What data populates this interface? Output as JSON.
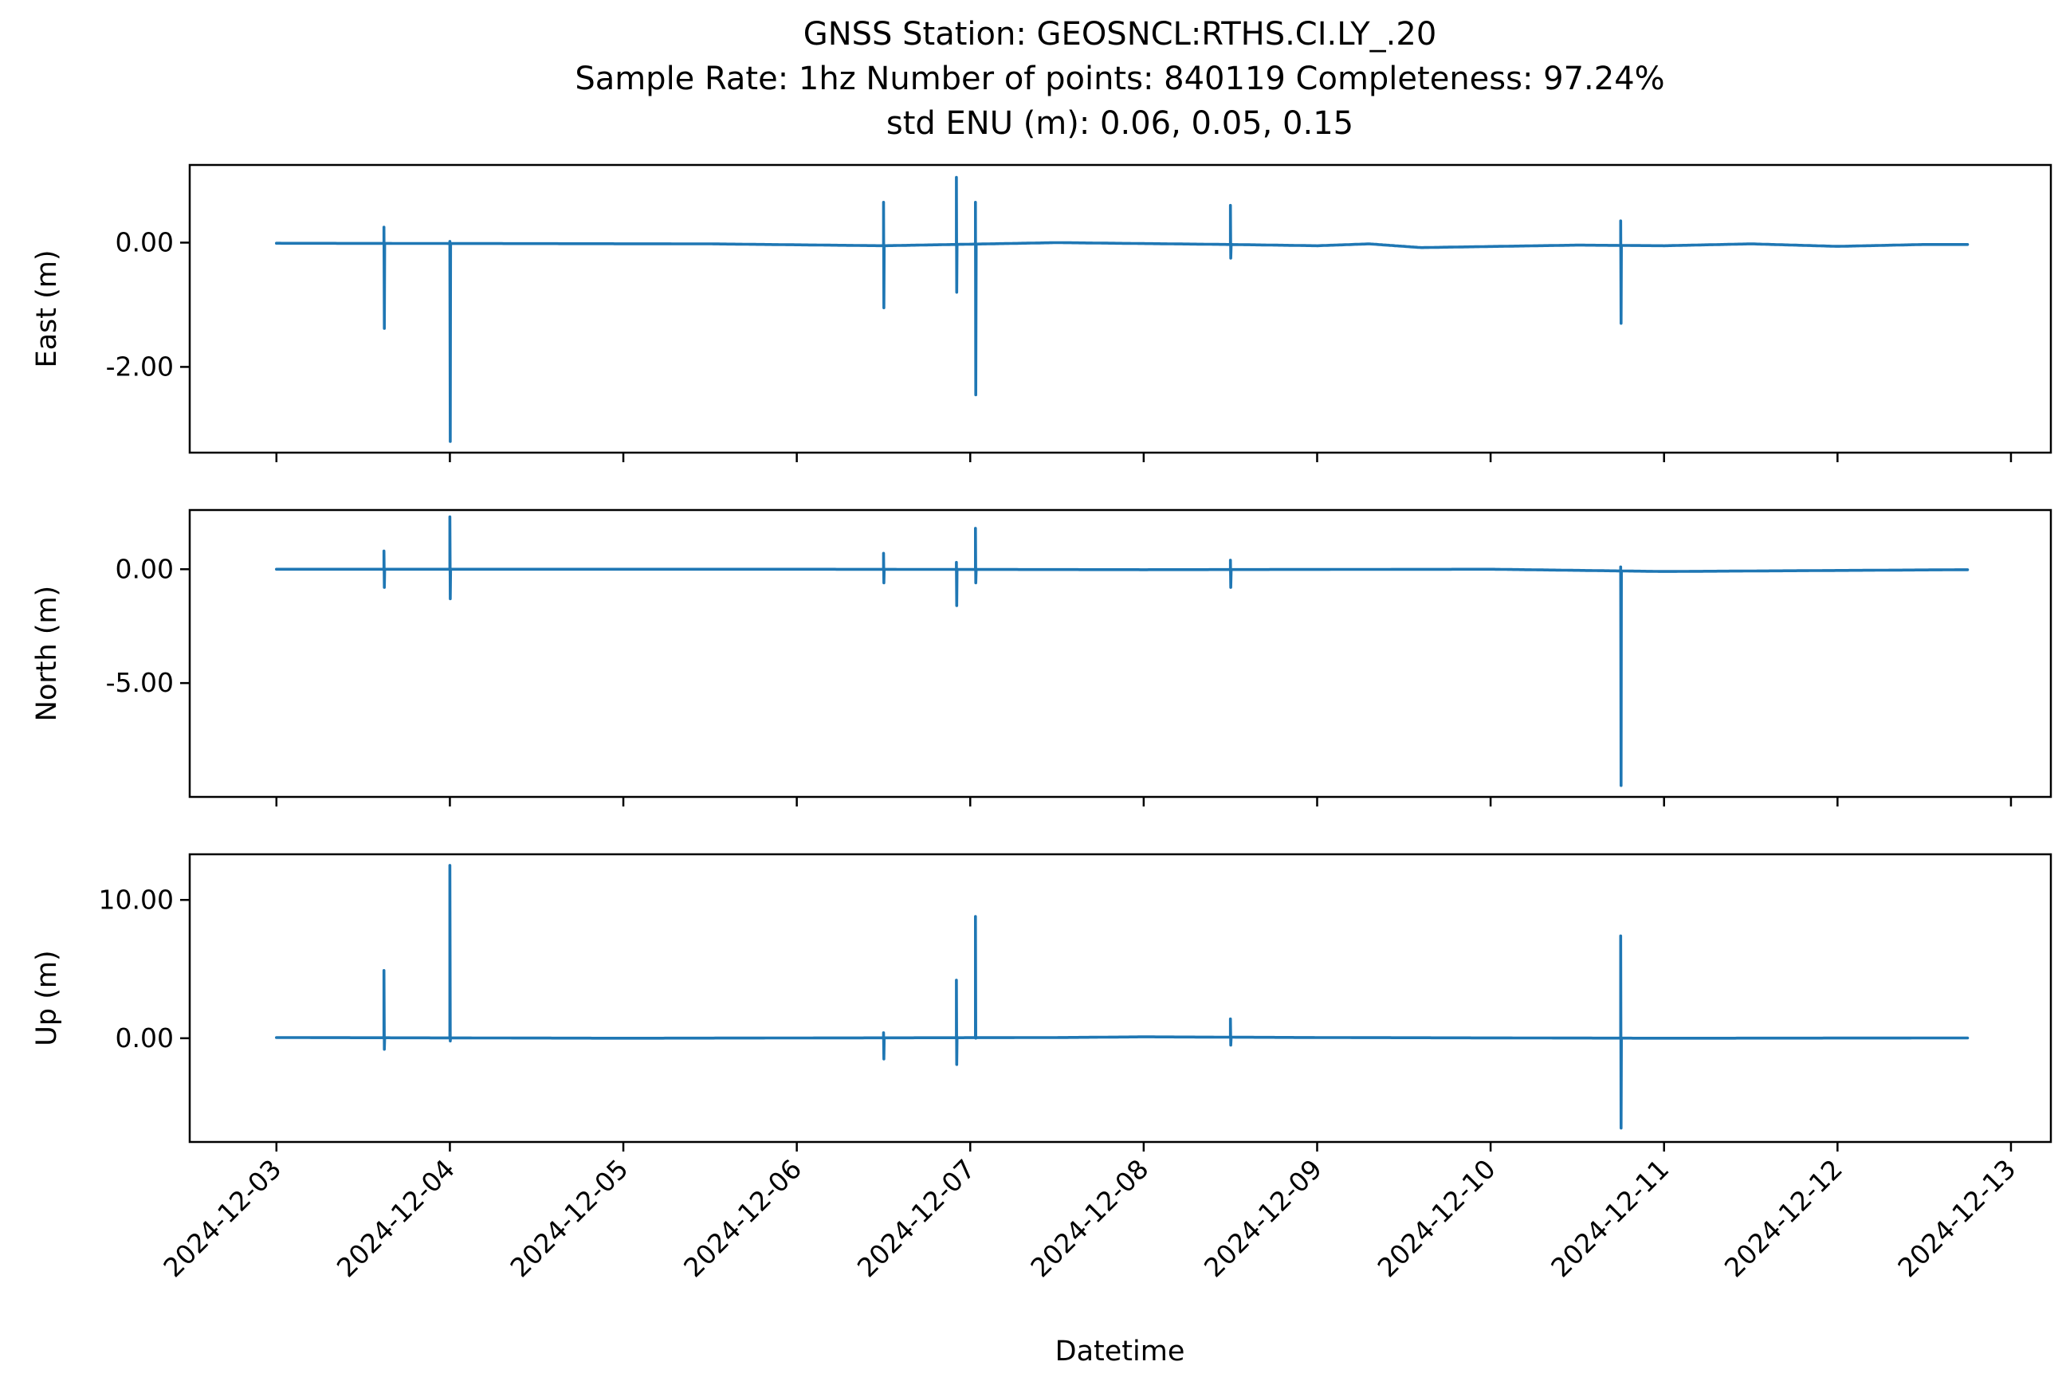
{
  "figure": {
    "title_lines": [
      "GNSS Station: GEOSNCL:RTHS.CI.LY_.20",
      "Sample Rate: 1hz   Number of points: 840119    Completeness:  97.24%",
      "std ENU (m):  0.06, 0.05, 0.15"
    ]
  },
  "colors": {
    "series": "#1f77b4",
    "axes": "#000000",
    "background": "#ffffff"
  },
  "chart_data": [
    {
      "type": "line",
      "ylabel": "East (m)",
      "xlabel": "",
      "yticks": [
        {
          "v": 0,
          "label": "0.00"
        },
        {
          "v": -2,
          "label": "-2.00"
        }
      ],
      "ylim": [
        -3.38,
        1.25
      ],
      "xlim": [
        -0.5,
        10.23
      ],
      "xtick_labels_shown": false,
      "series": [
        {
          "baseline": [
            [
              0,
              -0.01
            ],
            [
              2.5,
              -0.02
            ],
            [
              3.5,
              -0.05
            ],
            [
              4.5,
              0.0
            ],
            [
              5.5,
              -0.03
            ],
            [
              6.0,
              -0.05
            ],
            [
              6.3,
              -0.02
            ],
            [
              6.6,
              -0.08
            ],
            [
              7.5,
              -0.04
            ],
            [
              8.0,
              -0.05
            ],
            [
              8.5,
              -0.02
            ],
            [
              9.0,
              -0.06
            ],
            [
              9.5,
              -0.03
            ],
            [
              9.75,
              -0.03
            ]
          ],
          "spikes": [
            [
              0.62,
              0.25,
              -1.38
            ],
            [
              1.0,
              0.02,
              -3.2
            ],
            [
              3.5,
              0.65,
              -1.05
            ],
            [
              3.92,
              1.05,
              -0.8
            ],
            [
              4.03,
              0.65,
              -2.45
            ],
            [
              5.5,
              0.6,
              -0.25
            ],
            [
              7.75,
              0.35,
              -1.3
            ]
          ]
        }
      ]
    },
    {
      "type": "line",
      "ylabel": "North (m)",
      "xlabel": "",
      "yticks": [
        {
          "v": 0,
          "label": "0.00"
        },
        {
          "v": -5,
          "label": "-5.00"
        }
      ],
      "ylim": [
        -10.0,
        2.6
      ],
      "xlim": [
        -0.5,
        10.23
      ],
      "xtick_labels_shown": false,
      "series": [
        {
          "baseline": [
            [
              0,
              0.0
            ],
            [
              3.0,
              0.0
            ],
            [
              5.0,
              -0.02
            ],
            [
              7.0,
              0.0
            ],
            [
              8.0,
              -0.1
            ],
            [
              9.75,
              -0.02
            ]
          ],
          "spikes": [
            [
              0.62,
              0.8,
              -0.8
            ],
            [
              1.0,
              2.3,
              -1.3
            ],
            [
              3.5,
              0.7,
              -0.6
            ],
            [
              3.92,
              0.3,
              -1.6
            ],
            [
              4.03,
              1.8,
              -0.6
            ],
            [
              5.5,
              0.4,
              -0.8
            ],
            [
              7.75,
              0.1,
              -9.5
            ]
          ]
        }
      ]
    },
    {
      "type": "line",
      "ylabel": "Up (m)",
      "xlabel": "Datetime",
      "yticks": [
        {
          "v": 10,
          "label": "10.00"
        },
        {
          "v": 0,
          "label": "0.00"
        }
      ],
      "ylim": [
        -7.5,
        13.3
      ],
      "xlim": [
        -0.5,
        10.23
      ],
      "xtick_labels_shown": true,
      "series": [
        {
          "baseline": [
            [
              0,
              0.05
            ],
            [
              2.0,
              0.0
            ],
            [
              4.5,
              0.05
            ],
            [
              5.0,
              0.1
            ],
            [
              6.0,
              0.05
            ],
            [
              8.0,
              0.0
            ],
            [
              9.75,
              0.02
            ]
          ],
          "spikes": [
            [
              0.62,
              4.9,
              -0.8
            ],
            [
              1.0,
              12.5,
              -0.2
            ],
            [
              3.5,
              0.4,
              -1.5
            ],
            [
              3.92,
              4.2,
              -1.9
            ],
            [
              4.03,
              8.8,
              0.0
            ],
            [
              5.5,
              1.4,
              -0.5
            ],
            [
              7.75,
              7.4,
              -6.5
            ]
          ]
        }
      ]
    }
  ],
  "x_axis": {
    "tick_labels": [
      "2024-12-03",
      "2024-12-04",
      "2024-12-05",
      "2024-12-06",
      "2024-12-07",
      "2024-12-08",
      "2024-12-09",
      "2024-12-10",
      "2024-12-11",
      "2024-12-12",
      "2024-12-13"
    ]
  }
}
